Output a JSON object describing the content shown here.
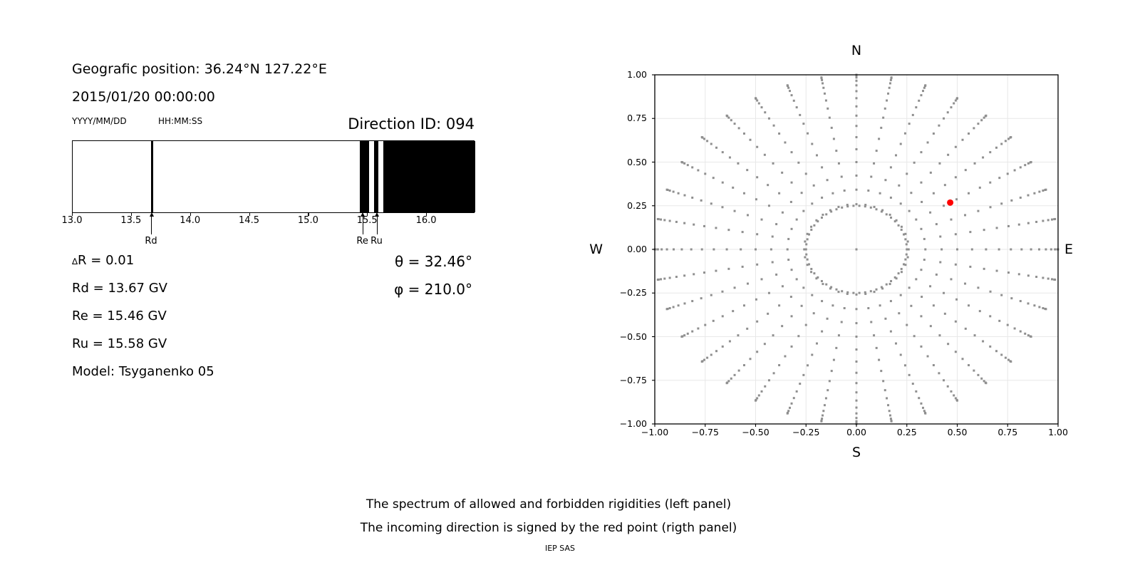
{
  "header": {
    "geo_position": "Geografic position: 36.24°N 127.22°E",
    "datetime": "2015/01/20 00:00:00",
    "date_format_hint": "YYYY/MM/DD",
    "time_format_hint": "HH:MM:SS",
    "direction_id": "Direction ID: 094"
  },
  "values": {
    "delta_symbol": "∆",
    "delta_rest": "R = 0.01",
    "rd": "Rd = 13.67 GV",
    "re": "Re = 15.46 GV",
    "ru": "Ru = 15.58 GV",
    "model": "Model: Tsyganenko 05",
    "theta": "θ = 32.46°",
    "phi": "φ = 210.0°"
  },
  "captions": {
    "line1": "The spectrum of allowed and forbidden rigidities (left panel)",
    "line2": "The incoming direction is signed by the red point (rigth panel)",
    "credit": "IEP SAS"
  },
  "chart_data": [
    {
      "type": "bar",
      "name": "rigidity-spectrum",
      "xmin": 13.0,
      "xmax": 16.41,
      "xticks": [
        13.0,
        13.5,
        14.0,
        14.5,
        15.0,
        15.5,
        16.0
      ],
      "bar_color": "#000000",
      "background": "#ffffff",
      "black_regions": [
        [
          13.662,
          13.68
        ],
        [
          15.43,
          15.51
        ],
        [
          15.55,
          15.59
        ],
        [
          15.63,
          16.41
        ]
      ],
      "arrows": [
        {
          "label": "Rd",
          "value": 13.67
        },
        {
          "label": "Re",
          "value": 15.46
        },
        {
          "label": "Ru",
          "value": 15.58
        }
      ]
    },
    {
      "type": "scatter",
      "name": "incoming-direction-plot",
      "xlim": [
        -1.0,
        1.0
      ],
      "ylim": [
        -1.0,
        1.0
      ],
      "xticks": [
        -1.0,
        -0.75,
        -0.5,
        -0.25,
        0.0,
        0.25,
        0.5,
        0.75,
        1.0
      ],
      "yticks": [
        -1.0,
        -0.75,
        -0.5,
        -0.25,
        0.0,
        0.25,
        0.5,
        0.75,
        1.0
      ],
      "grid": true,
      "grid_color": "#e8e8e8",
      "dot_color": "#8f8f8f",
      "compass_labels": {
        "top": "N",
        "bottom": "S",
        "left": "W",
        "right": "E"
      },
      "spokes": {
        "azimuth_start_deg": 0,
        "azimuth_step_deg": 10,
        "azimuth_count": 36,
        "zenith_start_deg": 15,
        "zenith_end_deg": 90,
        "zenith_step_deg": 5,
        "radius_rule": "sin(zenith)"
      },
      "inner_ring": {
        "radius": 0.25,
        "points": 54
      },
      "center_point": {
        "x": 0.0,
        "y": 0.0
      },
      "red_point": {
        "x": 0.465,
        "y": 0.268,
        "color": "#ff0000"
      }
    }
  ]
}
